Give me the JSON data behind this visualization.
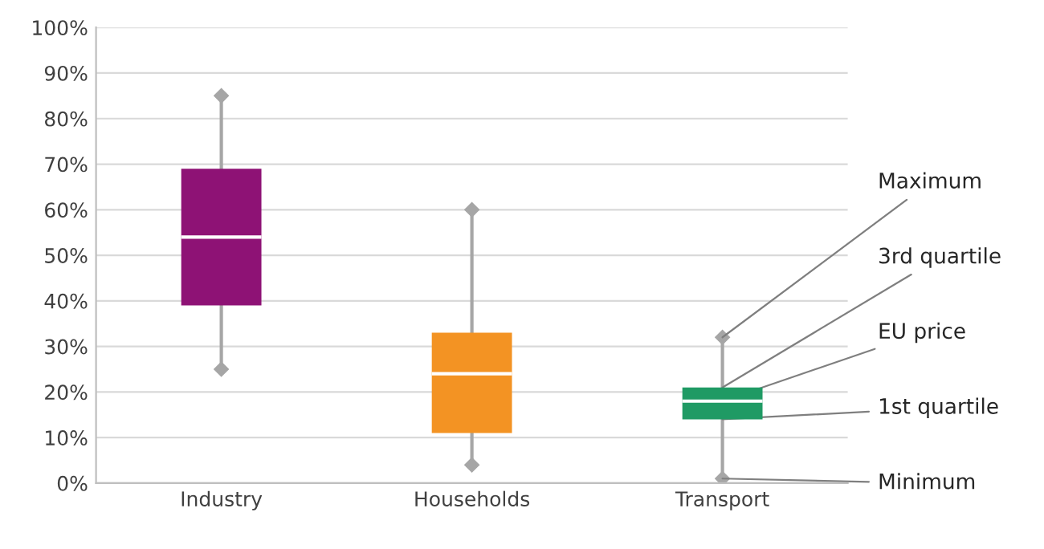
{
  "chart_data": {
    "type": "box",
    "categories": [
      "Industry",
      "Households",
      "Transport"
    ],
    "colors": [
      "#8e1275",
      "#f39323",
      "#1f9a64"
    ],
    "boxes": [
      {
        "low": 25,
        "q1": 39,
        "median": 54,
        "q3": 69,
        "high": 85
      },
      {
        "low": 4,
        "q1": 11,
        "median": 24,
        "q3": 33,
        "high": 60
      },
      {
        "low": 1,
        "q1": 14,
        "median": 18,
        "q3": 21,
        "high": 32
      }
    ],
    "ylim": [
      0,
      100
    ],
    "yticks": [
      {
        "value": 0,
        "label": "0%"
      },
      {
        "value": 10,
        "label": "10%"
      },
      {
        "value": 20,
        "label": "20%"
      },
      {
        "value": 30,
        "label": "30%"
      },
      {
        "value": 40,
        "label": "40%"
      },
      {
        "value": 50,
        "label": "50%"
      },
      {
        "value": 60,
        "label": "60%"
      },
      {
        "value": 70,
        "label": "70%"
      },
      {
        "value": 80,
        "label": "80%"
      },
      {
        "value": 90,
        "label": "90%"
      },
      {
        "value": 100,
        "label": "100%"
      }
    ],
    "grid": "y",
    "marker": "diamond",
    "annotations": [
      {
        "text": "Maximum",
        "x": "Transport",
        "y": 32
      },
      {
        "text": "3rd quartile",
        "x": "Transport",
        "y": 21
      },
      {
        "text": "EU price",
        "x": "Transport",
        "y": 18
      },
      {
        "text": "1st quartile",
        "x": "Transport",
        "y": 14
      },
      {
        "text": "Minimum",
        "x": "Transport",
        "y": 1
      }
    ]
  }
}
